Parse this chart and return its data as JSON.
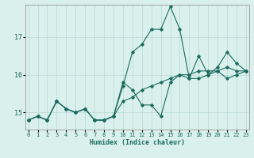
{
  "xlabel": "Humidex (Indice chaleur)",
  "ylabel": "",
  "bg_color": "#daf0ec",
  "grid_color": "#b8d8d4",
  "line_color": "#1a6b5e",
  "x_ticks": [
    0,
    1,
    2,
    3,
    4,
    5,
    6,
    7,
    8,
    9,
    10,
    11,
    12,
    13,
    14,
    15,
    16,
    17,
    18,
    19,
    20,
    21,
    22,
    23
  ],
  "y_ticks": [
    15,
    16,
    17
  ],
  "xlim": [
    -0.3,
    23.3
  ],
  "ylim": [
    14.55,
    17.85
  ],
  "series": [
    [
      14.8,
      14.9,
      14.8,
      15.3,
      15.1,
      15.0,
      15.1,
      14.8,
      14.8,
      14.9,
      15.7,
      16.6,
      16.8,
      17.2,
      17.2,
      17.8,
      17.2,
      15.9,
      15.9,
      16.0,
      16.2,
      16.6,
      16.3,
      16.1
    ],
    [
      14.8,
      14.9,
      14.8,
      15.3,
      15.1,
      15.0,
      15.1,
      14.8,
      14.8,
      14.9,
      15.8,
      15.6,
      15.2,
      15.2,
      14.9,
      15.8,
      16.0,
      15.9,
      16.5,
      16.0,
      16.1,
      15.9,
      16.0,
      16.1
    ],
    [
      14.8,
      14.9,
      14.8,
      15.3,
      15.1,
      15.0,
      15.1,
      14.8,
      14.8,
      14.9,
      15.3,
      15.4,
      15.6,
      15.7,
      15.8,
      15.9,
      16.0,
      16.0,
      16.1,
      16.1,
      16.1,
      16.2,
      16.1,
      16.1
    ]
  ],
  "tick_fontsize": 5.0,
  "xlabel_fontsize": 6.0
}
